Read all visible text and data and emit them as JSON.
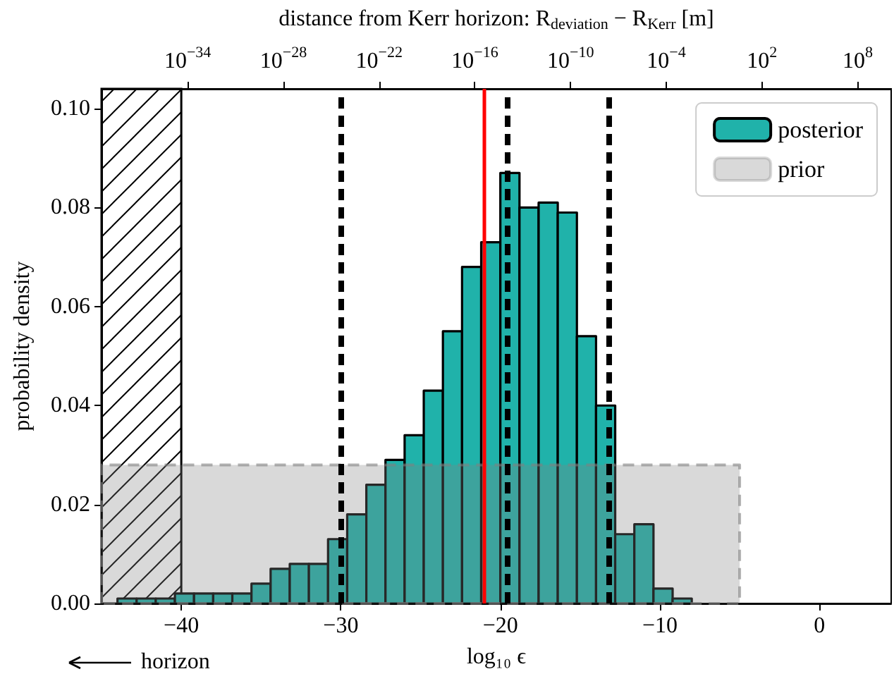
{
  "chart_data": {
    "type": "histogram",
    "xlabel": "log₁₀ ϵ",
    "ylabel": "probability density",
    "x2label": "distance from Kerr horizon: R$_{deviation}$ − R$_{Kerr}$ [m]",
    "bins": [
      -44,
      -42.8,
      -41.6,
      -40.4,
      -39.2,
      -38,
      -36.8,
      -35.6,
      -34.4,
      -33.2,
      -32,
      -30.8,
      -29.6,
      -28.4,
      -27.2,
      -26,
      -24.8,
      -23.6,
      -22.4,
      -21.2,
      -20,
      -18.8,
      -17.6,
      -16.4,
      -15.2,
      -14,
      -12.8,
      -11.6,
      -10.4,
      -9.2,
      -8
    ],
    "series": [
      {
        "name": "posterior",
        "color": "#20b2aa",
        "values": [
          0.001,
          0.001,
          0.001,
          0.002,
          0.002,
          0.002,
          0.002,
          0.004,
          0.007,
          0.008,
          0.008,
          0.013,
          0.018,
          0.024,
          0.029,
          0.034,
          0.043,
          0.055,
          0.068,
          0.073,
          0.087,
          0.08,
          0.081,
          0.079,
          0.054,
          0.04,
          0.014,
          0.016,
          0.003,
          0.001
        ]
      },
      {
        "name": "prior",
        "type": "area",
        "color": "#808080",
        "line_style": "dashed",
        "x": [
          -45,
          -5
        ],
        "values": [
          0.028,
          0.028
        ]
      }
    ],
    "xlim": [
      -45,
      4.5
    ],
    "xticks": [
      {
        "value": -40,
        "label": "−40"
      },
      {
        "value": -30,
        "label": "−30"
      },
      {
        "value": -20,
        "label": "−20"
      },
      {
        "value": -10,
        "label": "−10"
      },
      0
    ],
    "log": "x2",
    "x2lim": [
      3.98e-40,
      12600000000.0
    ],
    "x2ticks": [
      {
        "value": 1e-34,
        "label": "10$^{−34}$"
      },
      {
        "value": 1e-28,
        "label": "10$^{−28}$"
      },
      {
        "value": 1e-22,
        "label": "10$^{−22}$"
      },
      {
        "value": 1e-16,
        "label": "10$^{−16}$"
      },
      {
        "value": 1e-10,
        "label": "10$^{−10}$"
      },
      {
        "value": 0.0001,
        "label": "10$^{−4}$"
      },
      {
        "value": 100,
        "label": "10$^{2}$"
      },
      {
        "value": 100000000.0,
        "label": "10$^{8}$"
      }
    ],
    "ylim": [
      0,
      0.104
    ],
    "yticks": [
      {
        "value": 0,
        "label": "0.00"
      },
      {
        "value": 0.02,
        "label": "0.02"
      },
      {
        "value": 0.04,
        "label": "0.04"
      },
      {
        "value": 0.06,
        "label": "0.06"
      },
      {
        "value": 0.08,
        "label": "0.08"
      },
      {
        "value": 0.1,
        "label": "0.10"
      }
    ],
    "ref_lines": [
      {
        "axis": "x",
        "value": -30,
        "color": "#000000",
        "line_style": "dashed"
      },
      {
        "axis": "x",
        "value": -19.6,
        "color": "#000000",
        "line_style": "dashed"
      },
      {
        "axis": "x",
        "value": -13.2,
        "color": "#000000",
        "line_style": "dashed"
      },
      {
        "axis": "x",
        "value": -21,
        "color": "#ff0000",
        "line_style": "solid"
      }
    ],
    "bands": [
      {
        "axis": "x",
        "from": -45,
        "to": -40
      }
    ],
    "annotations": [
      "horizon"
    ],
    "legend": "top right",
    "grid": false
  }
}
